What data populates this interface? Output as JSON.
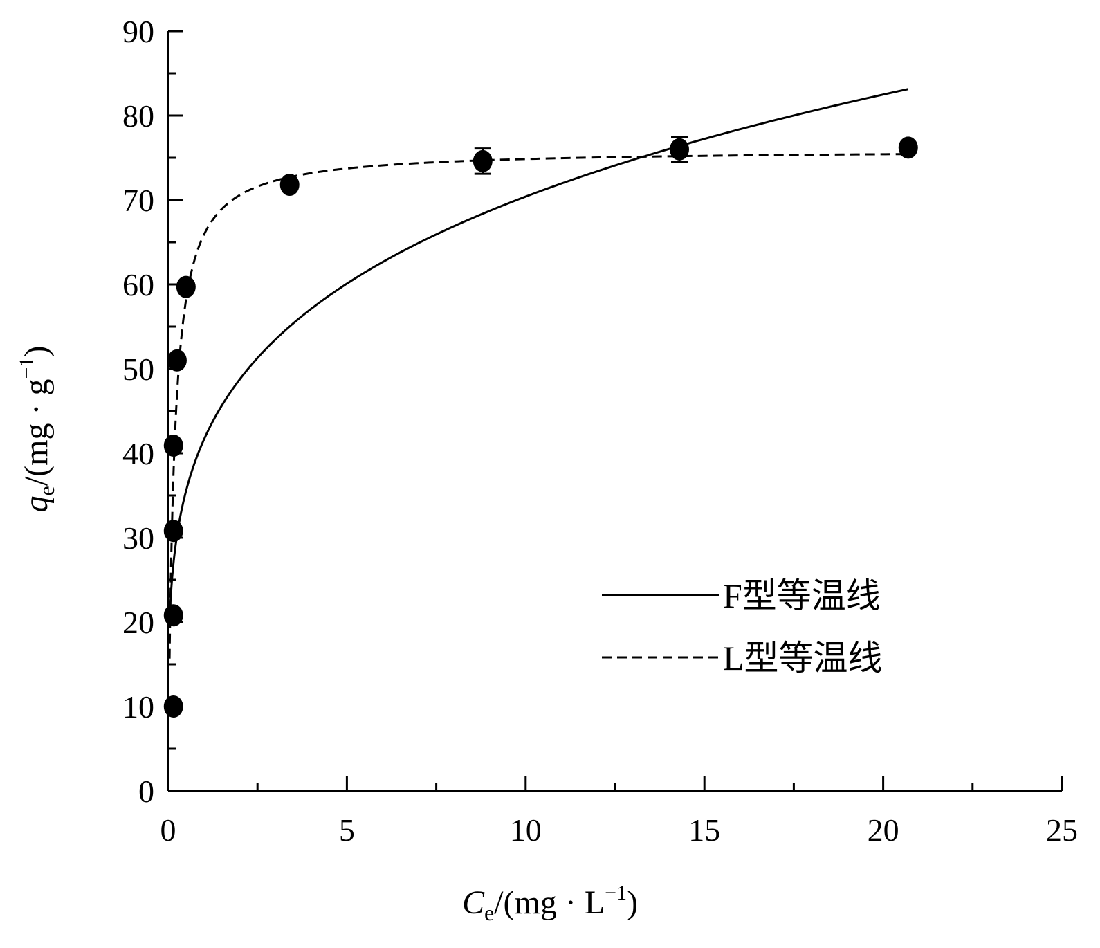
{
  "chart_data": {
    "type": "scatter",
    "title": "",
    "xlabel": {
      "var": "C",
      "sub": "e",
      "unit": "/(mg · L",
      "sup": "−1",
      "close": ")"
    },
    "ylabel": {
      "var": "q",
      "sub": "e",
      "unit": "/(mg · g",
      "sup": "−1",
      "close": ")"
    },
    "xlim": [
      0,
      25
    ],
    "ylim": [
      0,
      90
    ],
    "x_ticks": [
      0,
      5,
      10,
      15,
      20,
      25
    ],
    "x_tick_labels": [
      "0",
      "5",
      "10",
      "15",
      "20",
      "25"
    ],
    "y_ticks": [
      0,
      10,
      20,
      30,
      40,
      50,
      60,
      70,
      80,
      90
    ],
    "y_tick_labels": [
      "0",
      "10",
      "20",
      "30",
      "40",
      "50",
      "60",
      "70",
      "80",
      "90"
    ],
    "grid": false,
    "legend_position": "bottom-right",
    "points": [
      {
        "x": 0.15,
        "y": 10.0,
        "err": 0
      },
      {
        "x": 0.15,
        "y": 20.8,
        "err": 0
      },
      {
        "x": 0.15,
        "y": 30.8,
        "err": 0
      },
      {
        "x": 0.15,
        "y": 40.9,
        "err": 0
      },
      {
        "x": 0.25,
        "y": 51.0,
        "err": 0
      },
      {
        "x": 0.5,
        "y": 59.7,
        "err": 0
      },
      {
        "x": 3.4,
        "y": 71.8,
        "err": 0
      },
      {
        "x": 8.8,
        "y": 74.6,
        "err": 1.5
      },
      {
        "x": 14.3,
        "y": 76.0,
        "err": 1.5
      },
      {
        "x": 20.7,
        "y": 76.2,
        "err": 0
      }
    ],
    "series": [
      {
        "name": "F型等温线",
        "style": "solid",
        "model": "freundlich",
        "params": {
          "kf": 41.6,
          "n": 0.2285
        },
        "x_range": [
          0.05,
          20.7
        ]
      },
      {
        "name": "L型等温线",
        "style": "dashed",
        "model": "langmuir",
        "params": {
          "qm": 76.0,
          "kl": 6.5
        },
        "x_range": [
          0.04,
          20.7
        ]
      }
    ],
    "colors": {
      "line": "#000000",
      "marker": "#000000"
    }
  }
}
